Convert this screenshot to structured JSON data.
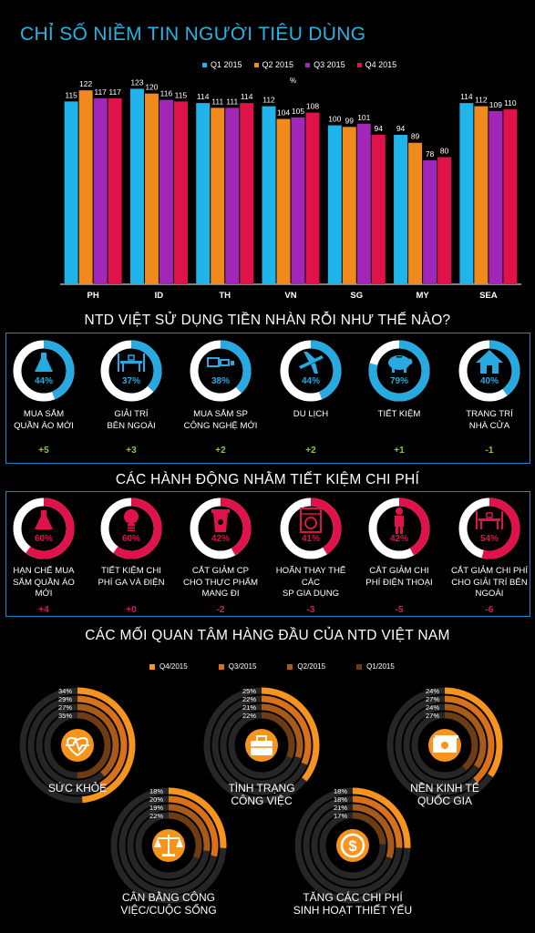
{
  "title": "CHỈ SỐ NIỀM TIN NGƯỜI TIÊU DÙNG",
  "chart_data": {
    "type": "bar",
    "categories": [
      "PH",
      "ID",
      "TH",
      "VN",
      "SG",
      "MY",
      "SEA"
    ],
    "series": [
      {
        "name": "Q1 2015",
        "values": [
          115,
          123,
          114,
          112,
          100,
          94,
          114
        ]
      },
      {
        "name": "Q2 2015",
        "values": [
          122,
          120,
          111,
          104,
          99,
          89,
          112
        ]
      },
      {
        "name": "Q3 2015",
        "values": [
          117,
          116,
          111,
          105,
          101,
          78,
          109
        ]
      },
      {
        "name": "Q4 2015",
        "values": [
          117,
          115,
          114,
          108,
          94,
          80,
          110
        ]
      }
    ],
    "ylabel": "%",
    "ylim": [
      0,
      130
    ],
    "colors": [
      "#1fb5ea",
      "#f08a1c",
      "#a127b8",
      "#e0124a"
    ]
  },
  "spending": {
    "title": "NTD VIỆT SỬ DỤNG TIỀN NHÀN RỖI NHƯ THẾ NÀO?",
    "ring_color": "#27a9e1",
    "items": [
      {
        "pct": "44%",
        "value": 44,
        "label": [
          "MUA SẮM",
          "QUẦN ÁO MỚI"
        ],
        "delta": "+5",
        "icon": "dress-icon"
      },
      {
        "pct": "37%",
        "value": 37,
        "label": [
          "GIẢI TRÍ",
          "BÊN NGOÀI"
        ],
        "delta": "+3",
        "icon": "dining-table-icon"
      },
      {
        "pct": "38%",
        "value": 38,
        "label": [
          "MUA SẮM SP",
          "CÔNG NGHỆ MỚI"
        ],
        "delta": "+2",
        "icon": "devices-icon"
      },
      {
        "pct": "44%",
        "value": 44,
        "label": [
          "DU LỊCH"
        ],
        "delta": "+2",
        "icon": "airplane-icon"
      },
      {
        "pct": "79%",
        "value": 79,
        "label": [
          "TIẾT KIỆM"
        ],
        "delta": "+1",
        "icon": "piggy-bank-icon"
      },
      {
        "pct": "40%",
        "value": 40,
        "label": [
          "TRANG TRÍ",
          "NHÀ CỬA"
        ],
        "delta": "-1",
        "icon": "house-icon"
      }
    ]
  },
  "saving": {
    "title": "CÁC HÀNH ĐỘNG NHẰM TIẾT KIỆM CHI PHÍ",
    "ring_color": "#e0124a",
    "items": [
      {
        "pct": "60%",
        "value": 60,
        "label": [
          "HẠN CHẾ MUA",
          "SẮM QUẦN ÁO",
          "MỚI"
        ],
        "delta": "+4",
        "icon": "dress-icon"
      },
      {
        "pct": "60%",
        "value": 60,
        "label": [
          "TIẾT KIỆM CHI",
          "PHÍ GA VÀ ĐIỆN"
        ],
        "delta": "+0",
        "icon": "light-bulb-icon"
      },
      {
        "pct": "42%",
        "value": 42,
        "label": [
          "CẮT GIẢM CP",
          "CHO THỰC PHẨM",
          "MANG ĐI"
        ],
        "delta": "-2",
        "icon": "coffee-cup-icon"
      },
      {
        "pct": "41%",
        "value": 41,
        "label": [
          "HOÃN THAY THẾ CÁC",
          "SP GIA DỤNG"
        ],
        "delta": "-3",
        "icon": "washing-machine-icon"
      },
      {
        "pct": "42%",
        "value": 42,
        "label": [
          "CẮT GIẢM CHI",
          "PHÍ ĐIỆN THOẠI"
        ],
        "delta": "-5",
        "icon": "phone-user-icon"
      },
      {
        "pct": "54%",
        "value": 54,
        "label": [
          "CẮT GIẢM CHI PHÍ",
          "CHO GIẢI TRÍ BÊN",
          "NGOÀI"
        ],
        "delta": "-6",
        "icon": "dining-table-icon"
      }
    ]
  },
  "concerns": {
    "title": "CÁC MỐI QUAN TÂM HÀNG ĐẦU CỦA NTD VIỆT NAM",
    "legend": [
      "Q4/2015",
      "Q3/2015",
      "Q2/2015",
      "Q1/2015"
    ],
    "colors": [
      "#f7941d",
      "#d9711a",
      "#a85a18",
      "#6e3c12"
    ],
    "items": [
      {
        "label": [
          "SỨC KHỎE"
        ],
        "values": [
          34,
          29,
          27,
          35
        ],
        "pcts": [
          "34%",
          "29%",
          "27%",
          "35%"
        ],
        "icon": "heartbeat-icon"
      },
      {
        "label": [
          "TÌNH TRẠNG",
          "CÔNG VIỆC"
        ],
        "values": [
          25,
          22,
          21,
          22
        ],
        "pcts": [
          "25%",
          "22%",
          "21%",
          "22%"
        ],
        "icon": "briefcase-icon"
      },
      {
        "label": [
          "NỀN KINH TẾ",
          "QUỐC GIA"
        ],
        "values": [
          24,
          27,
          24,
          27
        ],
        "pcts": [
          "24%",
          "27%",
          "24%",
          "27%"
        ],
        "icon": "money-icon"
      },
      {
        "label": [
          "CÂN BẰNG CÔNG",
          "VIỆC/CUỘC SỐNG"
        ],
        "values": [
          18,
          20,
          19,
          22
        ],
        "pcts": [
          "18%",
          "20%",
          "19%",
          "22%"
        ],
        "icon": "balance-scale-icon"
      },
      {
        "label": [
          "TĂNG CÁC CHI PHÍ",
          "SINH HOẠT THIẾT YẾU"
        ],
        "values": [
          18,
          18,
          21,
          17
        ],
        "pcts": [
          "18%",
          "18%",
          "21%",
          "17%"
        ],
        "icon": "dollar-coin-icon"
      }
    ]
  }
}
